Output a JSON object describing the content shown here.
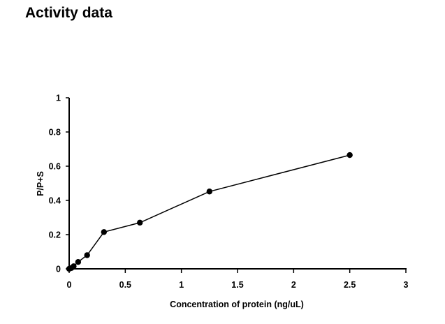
{
  "page": {
    "title": "Activity data"
  },
  "chart_data": {
    "type": "line",
    "title": "",
    "xlabel": "Concentration of protein (ng/uL)",
    "ylabel": "P/P+S",
    "xlim": [
      0,
      3
    ],
    "ylim": [
      0,
      1
    ],
    "x_ticks": [
      0,
      0.5,
      1,
      1.5,
      2,
      2.5,
      3
    ],
    "x_tick_labels": [
      "0",
      "0.5",
      "1",
      "1.5",
      "2",
      "2.5",
      "3"
    ],
    "y_ticks": [
      0,
      0.2,
      0.4,
      0.6,
      0.8,
      1
    ],
    "y_tick_labels": [
      "0",
      "0.2",
      "0.4",
      "0.6",
      "0.8",
      "1"
    ],
    "grid": false,
    "legend": "none",
    "colors": {
      "line": "#000000",
      "marker": "#000000"
    },
    "series": [
      {
        "x": [
          0,
          0.02,
          0.04,
          0.08,
          0.16,
          0.31,
          0.63,
          1.25,
          2.5
        ],
        "y": [
          0,
          0.005,
          0.015,
          0.04,
          0.08,
          0.215,
          0.27,
          0.452,
          0.665
        ]
      }
    ]
  }
}
